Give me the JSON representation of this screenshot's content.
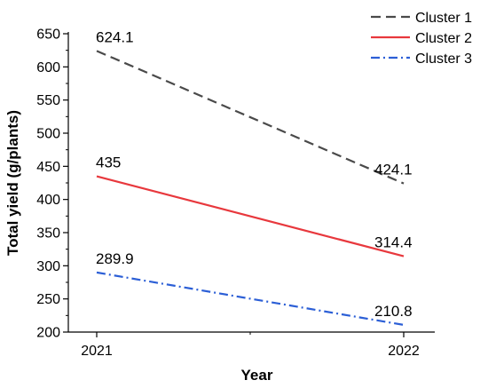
{
  "chart_data": {
    "type": "line",
    "x": [
      "2021",
      "2022"
    ],
    "xlabel": "Year",
    "ylabel": "Total yield (g/plants)",
    "ylim": [
      200,
      650
    ],
    "yticks": [
      200,
      250,
      300,
      350,
      400,
      450,
      500,
      550,
      600,
      650
    ],
    "grid": false,
    "legend_position": "top-right",
    "series": [
      {
        "name": "Cluster 1",
        "values": [
          624.1,
          424.1
        ],
        "labels": [
          "624.1",
          "424.1"
        ],
        "color": "#4a4a4a",
        "dash": "dashed"
      },
      {
        "name": "Cluster 2",
        "values": [
          435,
          314.4
        ],
        "labels": [
          "435",
          "314.4"
        ],
        "color": "#e8383d",
        "dash": "solid"
      },
      {
        "name": "Cluster 3",
        "values": [
          289.9,
          210.8
        ],
        "labels": [
          "289.9",
          "210.8"
        ],
        "color": "#2c5fd6",
        "dash": "dashdot"
      }
    ]
  }
}
